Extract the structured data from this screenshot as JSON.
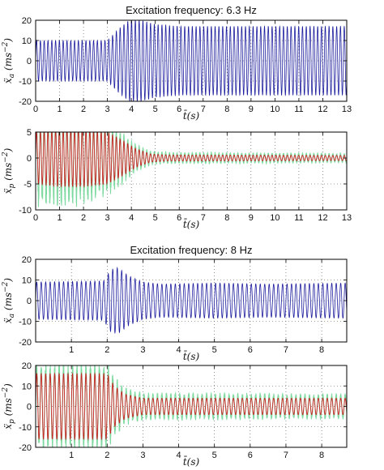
{
  "figure": {
    "titles": [
      "Excitation frequency: 6.3 Hz",
      "Excitation frequency: 8 Hz"
    ]
  },
  "chart_data": [
    {
      "type": "line",
      "title": "Excitation frequency: 6.3 Hz",
      "xlabel": "t̄(s)",
      "ylabel": "ẍ_a (ms^-2)",
      "ylabel_parts": {
        "sym": "ẍ",
        "sub": "a",
        "unit_open": "(ms",
        "unit_exp": "−2",
        "unit_close": ")"
      },
      "xlim": [
        0,
        13
      ],
      "ylim": [
        -20,
        20
      ],
      "xticks": [
        0,
        1,
        2,
        3,
        4,
        5,
        6,
        7,
        8,
        9,
        10,
        11,
        12,
        13
      ],
      "yticks": [
        -20,
        -10,
        0,
        10,
        20
      ],
      "grid": true,
      "signal": {
        "frequency_hz": 6.3,
        "envelope": [
          [
            0,
            10
          ],
          [
            3,
            10
          ],
          [
            3.4,
            15
          ],
          [
            3.9,
            20
          ],
          [
            4.4,
            20
          ],
          [
            5,
            18
          ],
          [
            6,
            17
          ],
          [
            8,
            17
          ],
          [
            10,
            17
          ],
          [
            13,
            17
          ]
        ]
      },
      "series": [
        {
          "color": "#1c1c9e"
        }
      ]
    },
    {
      "type": "line",
      "title": "",
      "xlabel": "t̄(s)",
      "ylabel": "ẍ_p (ms^-2)",
      "ylabel_parts": {
        "sym": "ẍ",
        "sub": "p",
        "unit_open": "(ms",
        "unit_exp": "−2",
        "unit_close": ")"
      },
      "xlim": [
        0,
        13
      ],
      "ylim": [
        -10,
        5
      ],
      "xticks": [
        0,
        1,
        2,
        3,
        4,
        5,
        6,
        7,
        8,
        9,
        10,
        11,
        12,
        13
      ],
      "yticks": [
        -10,
        -5,
        0,
        5
      ],
      "grid": true,
      "signal": {
        "frequency_hz": 6.3,
        "envelope": [
          [
            0,
            5
          ],
          [
            1,
            5.5
          ],
          [
            2,
            5.5
          ],
          [
            3,
            5
          ],
          [
            3.6,
            3.5
          ],
          [
            4.2,
            1.8
          ],
          [
            4.8,
            0.8
          ],
          [
            5.5,
            0.6
          ],
          [
            13,
            0.5
          ]
        ],
        "overlay_envelope": [
          [
            0,
            8
          ],
          [
            1,
            8.5
          ],
          [
            2,
            8
          ],
          [
            3,
            6.5
          ],
          [
            3.6,
            4.5
          ],
          [
            4.2,
            2.5
          ],
          [
            4.8,
            1.2
          ],
          [
            5.5,
            1
          ],
          [
            13,
            0.8
          ]
        ]
      },
      "series": [
        {
          "color": "#7ed9a0"
        },
        {
          "color": "#cc2222"
        }
      ]
    },
    {
      "type": "line",
      "title": "Excitation frequency: 8 Hz",
      "xlabel": "t̄(s)",
      "ylabel": "ẍ_a (ms^-2)",
      "ylabel_parts": {
        "sym": "ẍ",
        "sub": "a",
        "unit_open": "(ms",
        "unit_exp": "−2",
        "unit_close": ")"
      },
      "xlim": [
        0,
        8.7
      ],
      "ylim": [
        -20,
        20
      ],
      "xticks": [
        1,
        2,
        3,
        4,
        5,
        6,
        7,
        8
      ],
      "yticks": [
        -20,
        -10,
        0,
        10,
        20
      ],
      "grid": true,
      "signal": {
        "frequency_hz": 8,
        "envelope": [
          [
            0,
            9
          ],
          [
            1.9,
            9.5
          ],
          [
            2.1,
            15
          ],
          [
            2.3,
            16
          ],
          [
            2.6,
            12
          ],
          [
            3,
            9
          ],
          [
            3.5,
            8
          ],
          [
            5,
            8.5
          ],
          [
            6.5,
            8
          ],
          [
            8.7,
            8.5
          ]
        ]
      },
      "series": [
        {
          "color": "#1c1c9e"
        }
      ]
    },
    {
      "type": "line",
      "title": "",
      "xlabel": "t̄(s)",
      "ylabel": "ẍ_p (ms^-2)",
      "ylabel_parts": {
        "sym": "ẍ",
        "sub": "p",
        "unit_open": "(ms",
        "unit_exp": "−2",
        "unit_close": ")"
      },
      "xlim": [
        0,
        8.7
      ],
      "ylim": [
        -20,
        20
      ],
      "xticks": [
        1,
        2,
        3,
        4,
        5,
        6,
        7,
        8
      ],
      "yticks": [
        -20,
        -10,
        0,
        10,
        20
      ],
      "grid": true,
      "signal": {
        "frequency_hz": 8,
        "envelope": [
          [
            0,
            16
          ],
          [
            2,
            16
          ],
          [
            2.2,
            10
          ],
          [
            2.5,
            6
          ],
          [
            3,
            4
          ],
          [
            8.7,
            4
          ]
        ],
        "overlay_envelope": [
          [
            0,
            19
          ],
          [
            2,
            19
          ],
          [
            2.2,
            13
          ],
          [
            2.5,
            8
          ],
          [
            3,
            6
          ],
          [
            8.7,
            5.5
          ]
        ]
      },
      "series": [
        {
          "color": "#7ed9a0"
        },
        {
          "color": "#cc2222"
        }
      ]
    }
  ]
}
